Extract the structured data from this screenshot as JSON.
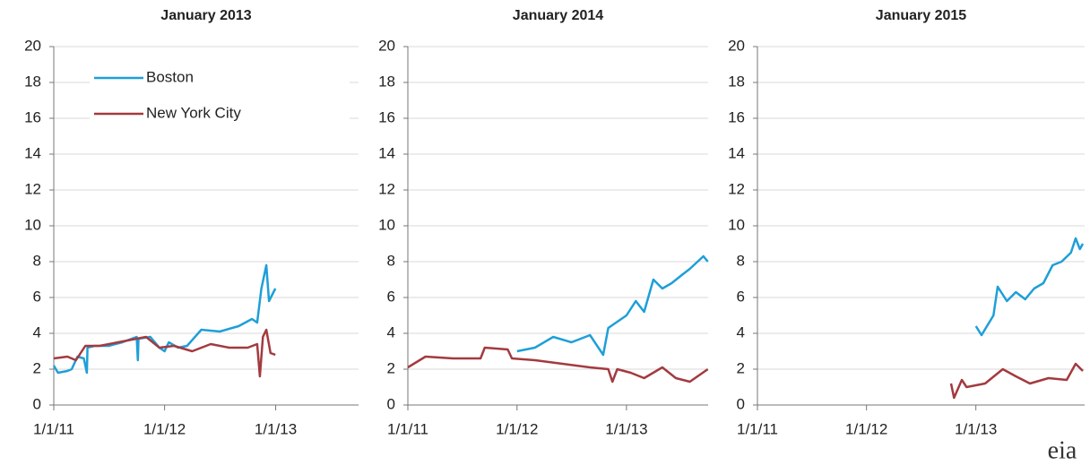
{
  "chart_data": [
    {
      "type": "line",
      "title": "January 2013",
      "legend": "top-left",
      "xlim": [
        "2011-01-01",
        "2013-10-01"
      ],
      "xticks": [
        {
          "value": "2011-01-01",
          "label": "1/1/11"
        },
        {
          "value": "2012-01-01",
          "label": "1/1/12"
        },
        {
          "value": "2013-01-01",
          "label": "1/1/13"
        }
      ],
      "ylim": [
        0,
        20
      ],
      "yticks": [
        0,
        2,
        4,
        6,
        8,
        10,
        12,
        14,
        16,
        18,
        20
      ],
      "grid": true,
      "series": [
        {
          "name": "Boston",
          "color": "#1e9fd8",
          "x": [
            "2011-01-01",
            "2011-01-15",
            "2011-02-15",
            "2011-03-01",
            "2011-03-20",
            "2011-04-10",
            "2011-04-20",
            "2011-04-22",
            "2011-05-15",
            "2011-07-01",
            "2011-08-15",
            "2011-09-15",
            "2011-10-01",
            "2011-10-05",
            "2011-10-07",
            "2011-11-15",
            "2011-12-15",
            "2012-01-01",
            "2012-01-15",
            "2012-02-15",
            "2012-03-15",
            "2012-05-01",
            "2012-07-01",
            "2012-09-01",
            "2012-10-15",
            "2012-11-01",
            "2012-11-15",
            "2012-12-01",
            "2012-12-10",
            "2012-12-31"
          ],
          "values": [
            2.2,
            1.8,
            1.9,
            2.0,
            2.7,
            2.6,
            1.8,
            3.2,
            3.3,
            3.3,
            3.5,
            3.7,
            3.8,
            2.5,
            3.7,
            3.8,
            3.2,
            3.0,
            3.5,
            3.2,
            3.3,
            4.2,
            4.1,
            4.4,
            4.8,
            4.6,
            6.5,
            7.8,
            5.8,
            6.5
          ]
        },
        {
          "name": "New York City",
          "color": "#a33a3f",
          "x": [
            "2011-01-01",
            "2011-02-15",
            "2011-03-15",
            "2011-04-15",
            "2011-06-01",
            "2011-08-01",
            "2011-10-01",
            "2011-11-01",
            "2011-12-15",
            "2012-02-01",
            "2012-04-01",
            "2012-06-01",
            "2012-08-01",
            "2012-10-01",
            "2012-11-01",
            "2012-11-10",
            "2012-11-20",
            "2012-12-01",
            "2012-12-15",
            "2012-12-31"
          ],
          "values": [
            2.6,
            2.7,
            2.5,
            3.3,
            3.3,
            3.5,
            3.7,
            3.8,
            3.2,
            3.3,
            3.0,
            3.4,
            3.2,
            3.2,
            3.4,
            1.6,
            3.8,
            4.2,
            2.9,
            2.8
          ]
        }
      ]
    },
    {
      "type": "line",
      "title": "January 2014",
      "xlim": [
        "2011-01-01",
        "2013-10-01"
      ],
      "xticks": [
        {
          "value": "2011-01-01",
          "label": "1/1/11"
        },
        {
          "value": "2012-01-01",
          "label": "1/1/12"
        },
        {
          "value": "2013-01-01",
          "label": "1/1/13"
        }
      ],
      "ylim": [
        0,
        20
      ],
      "yticks": [
        0,
        2,
        4,
        6,
        8,
        10,
        12,
        14,
        16,
        18,
        20
      ],
      "grid": true,
      "series": [
        {
          "color": "#1e9fd8",
          "x": [
            "2012-01-01",
            "2012-03-01",
            "2012-05-01",
            "2012-07-01",
            "2012-09-01",
            "2012-10-15",
            "2012-11-01",
            "2013-01-01",
            "2013-02-01",
            "2013-03-01",
            "2013-04-01",
            "2013-05-01",
            "2013-06-01",
            "2013-07-01",
            "2013-08-01",
            "2013-09-15",
            "2013-09-30"
          ],
          "values": [
            3.0,
            3.2,
            3.8,
            3.5,
            3.9,
            2.8,
            4.3,
            5.0,
            5.8,
            5.2,
            7.0,
            6.5,
            6.8,
            7.2,
            7.6,
            8.3,
            8.0
          ]
        },
        {
          "color": "#a33a3f",
          "x": [
            "2011-01-01",
            "2011-03-01",
            "2011-06-01",
            "2011-09-01",
            "2011-09-15",
            "2011-12-01",
            "2011-12-15",
            "2012-03-01",
            "2012-06-01",
            "2012-09-01",
            "2012-11-01",
            "2012-11-15",
            "2012-12-01",
            "2013-01-15",
            "2013-03-01",
            "2013-05-01",
            "2013-06-15",
            "2013-08-01",
            "2013-09-30"
          ],
          "values": [
            2.1,
            2.7,
            2.6,
            2.6,
            3.2,
            3.1,
            2.6,
            2.5,
            2.3,
            2.1,
            2.0,
            1.3,
            2.0,
            1.8,
            1.5,
            2.1,
            1.5,
            1.3,
            2.0
          ]
        }
      ]
    },
    {
      "type": "line",
      "title": "January 2015",
      "xlim": [
        "2011-01-01",
        "2013-12-31"
      ],
      "xticks": [
        {
          "value": "2011-01-01",
          "label": "1/1/11"
        },
        {
          "value": "2012-01-01",
          "label": "1/1/12"
        },
        {
          "value": "2013-01-01",
          "label": "1/1/13"
        }
      ],
      "ylim": [
        0,
        20
      ],
      "yticks": [
        0,
        2,
        4,
        6,
        8,
        10,
        12,
        14,
        16,
        18,
        20
      ],
      "grid": true,
      "series": [
        {
          "color": "#1e9fd8",
          "x": [
            "2013-01-01",
            "2013-01-20",
            "2013-03-01",
            "2013-03-15",
            "2013-04-15",
            "2013-05-15",
            "2013-06-15",
            "2013-07-15",
            "2013-08-15",
            "2013-09-15",
            "2013-10-15",
            "2013-11-15",
            "2013-12-01",
            "2013-12-15",
            "2013-12-25"
          ],
          "values": [
            4.4,
            3.9,
            5.0,
            6.6,
            5.8,
            6.3,
            5.9,
            6.5,
            6.8,
            7.8,
            8.0,
            8.5,
            9.3,
            8.7,
            9.0
          ]
        },
        {
          "color": "#a33a3f",
          "x": [
            "2012-10-10",
            "2012-10-20",
            "2012-11-15",
            "2012-12-01",
            "2013-02-01",
            "2013-04-01",
            "2013-05-15",
            "2013-07-01",
            "2013-09-01",
            "2013-11-01",
            "2013-12-01",
            "2013-12-25"
          ],
          "values": [
            1.2,
            0.4,
            1.4,
            1.0,
            1.2,
            2.0,
            1.6,
            1.2,
            1.5,
            1.4,
            2.3,
            1.9
          ]
        }
      ]
    }
  ],
  "logo": "eia"
}
